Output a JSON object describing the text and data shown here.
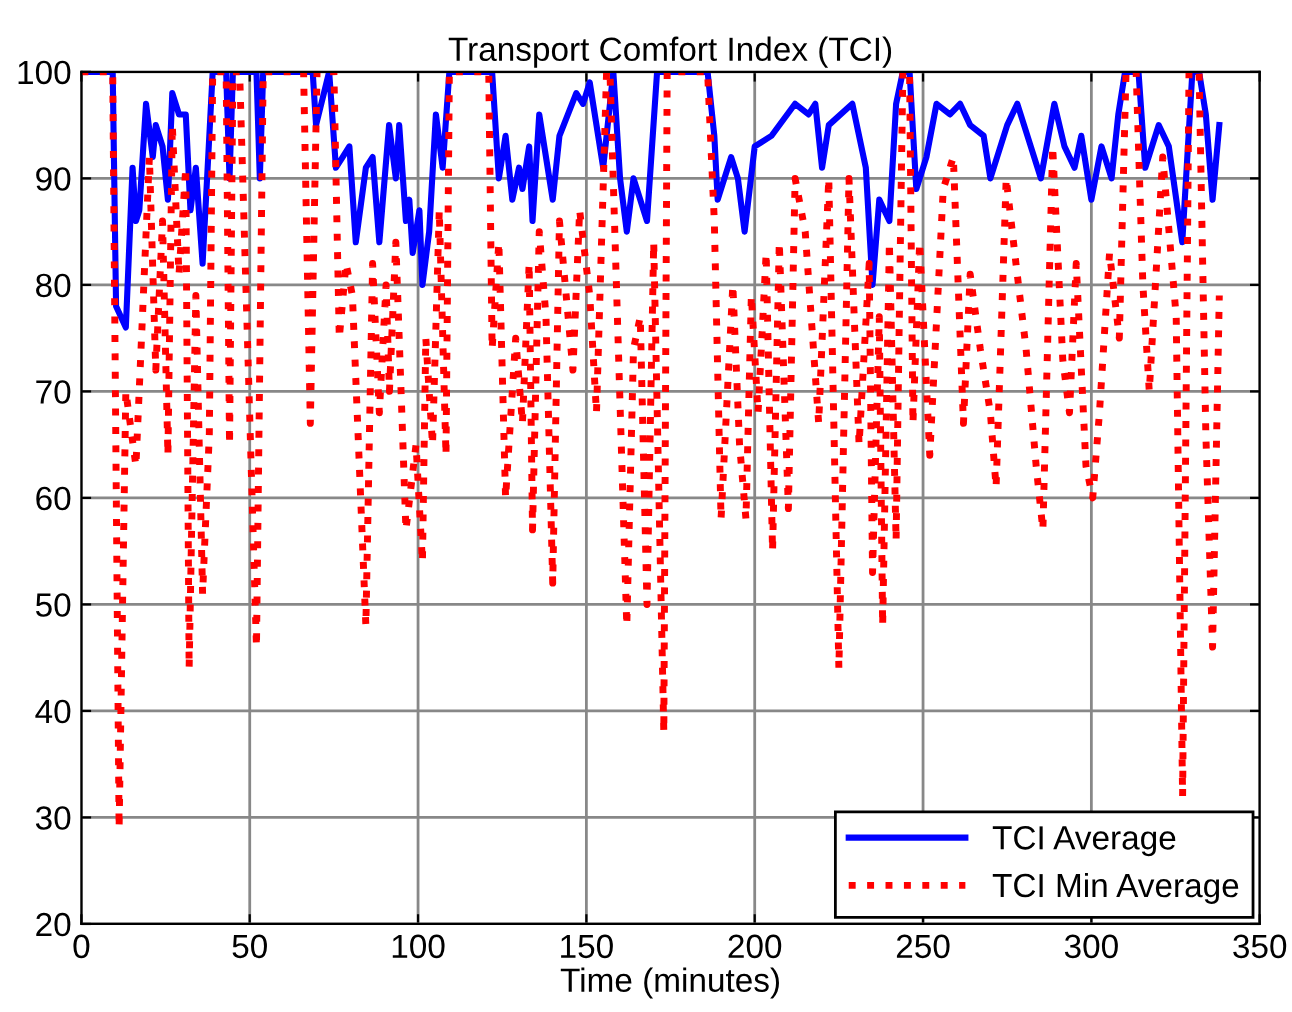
{
  "chart_data": {
    "type": "line",
    "title": "Transport Comfort Index (TCI)",
    "xlabel": "Time (minutes)",
    "xlim": [
      0,
      350
    ],
    "xticks": [
      0,
      50,
      100,
      150,
      200,
      250,
      300,
      350
    ],
    "ylim": [
      20,
      100
    ],
    "yticks": [
      20,
      30,
      40,
      50,
      60,
      70,
      80,
      90,
      100
    ],
    "grid": true,
    "legend": "bottom right",
    "marker": "none",
    "series": [
      {
        "name": "TCI Average",
        "color": "#0000ff",
        "line_style": "solid",
        "x": [
          0,
          9.3,
          10.3,
          13.2,
          15.2,
          16.2,
          17.2,
          19.2,
          21.2,
          22.1,
          24.1,
          25.7,
          27,
          29,
          31,
          32.4,
          34,
          36,
          39,
          43,
          44,
          45,
          52,
          53,
          54,
          68.7,
          69.7,
          73.6,
          75.6,
          77.6,
          79.6,
          81.5,
          84.5,
          86.5,
          88.5,
          91.4,
          93.4,
          94.4,
          96.4,
          97.4,
          98.4,
          100.4,
          101.3,
          103.3,
          105.3,
          107.3,
          109.3,
          122,
          124,
          126,
          128,
          130,
          131,
          133,
          134,
          136,
          140,
          142,
          147,
          149,
          151,
          155,
          158,
          160,
          162,
          164,
          168,
          171,
          186,
          188,
          189,
          193,
          195,
          197,
          200,
          205,
          212,
          216,
          218,
          220,
          222,
          229,
          233,
          235,
          237,
          240,
          242,
          244,
          246,
          248,
          251,
          254,
          258,
          261,
          264,
          268,
          270,
          275,
          278,
          285,
          289,
          292,
          295,
          297,
          300,
          303,
          306,
          308,
          310,
          314,
          316,
          320,
          323,
          327,
          330,
          332,
          334,
          336,
          338
        ],
        "values": [
          100,
          100,
          78,
          76,
          91,
          86,
          87,
          97,
          92,
          95,
          93,
          88,
          98,
          96,
          96,
          87,
          91,
          82,
          100,
          100,
          90,
          100,
          100,
          90,
          100,
          100,
          95,
          100,
          91,
          92,
          93,
          84,
          91,
          92,
          84,
          95,
          90,
          95,
          86,
          88,
          83,
          87,
          80,
          85,
          96,
          91,
          100,
          100,
          90,
          94,
          88,
          91,
          89,
          93,
          86,
          96,
          88,
          94,
          98,
          97,
          99,
          91,
          100,
          90,
          85,
          90,
          86,
          100,
          100,
          94,
          88,
          92,
          90,
          85,
          93,
          94,
          97,
          96,
          97,
          91,
          95,
          97,
          91,
          80,
          88,
          86,
          97,
          100,
          100,
          89,
          92,
          97,
          96,
          97,
          95,
          94,
          90,
          95,
          97,
          90,
          97,
          93,
          91,
          94,
          88,
          93,
          90,
          96,
          100,
          100,
          91,
          95,
          93,
          84,
          100,
          100,
          96,
          88,
          95
        ]
      },
      {
        "name": "TCI Min Average",
        "color": "#ff0000",
        "line_style": "dotted",
        "x": [
          0,
          9.3,
          11.2,
          13.2,
          16.2,
          20.2,
          22.1,
          24.1,
          25.7,
          27,
          29,
          31,
          32,
          34,
          36,
          38,
          39,
          43,
          44,
          45,
          47,
          52,
          54,
          66,
          68,
          70,
          75,
          76.6,
          78.6,
          80.5,
          84.5,
          86.5,
          88.5,
          90.5,
          91.5,
          93.4,
          96.4,
          99.4,
          101.3,
          102.3,
          104.3,
          106.3,
          108.3,
          109.3,
          114,
          116,
          121,
          122,
          124,
          126,
          129,
          131,
          133,
          134,
          136,
          138,
          140,
          142,
          146,
          148,
          151,
          153,
          156,
          157,
          162,
          164,
          166,
          168,
          170,
          173,
          174,
          186,
          188,
          190,
          193.5,
          195.5,
          197.4,
          199,
          201,
          203.4,
          205.3,
          207.3,
          210,
          212,
          215,
          219,
          222,
          225,
          228,
          231,
          234,
          235,
          237,
          238,
          240,
          242,
          244,
          246,
          247,
          249,
          252,
          256,
          259,
          262,
          264,
          267,
          270,
          271.7,
          274.7,
          277.6,
          280.6,
          283.6,
          285.6,
          288.5,
          291.5,
          293.5,
          295.5,
          298.4,
          300.4,
          302.4,
          305.4,
          308.3,
          310.3,
          313.3,
          315.3,
          317.2,
          321.2,
          325.2,
          327.1,
          329,
          332,
          334,
          336,
          338
        ],
        "values": [
          100,
          100,
          29,
          70,
          63,
          92,
          72,
          86,
          64,
          95,
          81,
          91,
          44,
          79,
          51,
          66,
          100,
          100,
          65,
          100,
          100,
          46,
          100,
          100,
          67,
          100,
          100,
          75,
          82,
          79,
          48,
          82,
          68,
          80,
          70,
          84,
          57,
          65,
          54,
          75,
          65,
          87,
          64,
          100,
          100,
          100,
          100,
          74,
          84,
          60,
          75,
          67,
          82,
          57,
          85,
          77,
          52,
          86,
          72,
          87,
          79,
          68,
          100,
          100,
          48,
          74,
          77,
          50,
          84,
          38,
          100,
          100,
          86,
          58,
          80,
          65,
          58,
          79,
          68,
          83,
          55,
          84,
          59,
          90,
          85,
          67,
          90,
          44,
          90,
          65,
          82,
          53,
          77,
          48,
          84,
          56,
          100,
          100,
          67,
          84,
          64,
          89,
          92,
          67,
          81,
          74,
          68,
          61,
          90,
          82,
          74,
          63,
          57,
          93,
          73,
          68,
          82,
          63,
          60,
          68,
          83,
          75,
          100,
          100,
          80,
          70,
          92,
          77,
          32,
          100,
          100,
          66,
          46,
          79
        ]
      }
    ]
  }
}
